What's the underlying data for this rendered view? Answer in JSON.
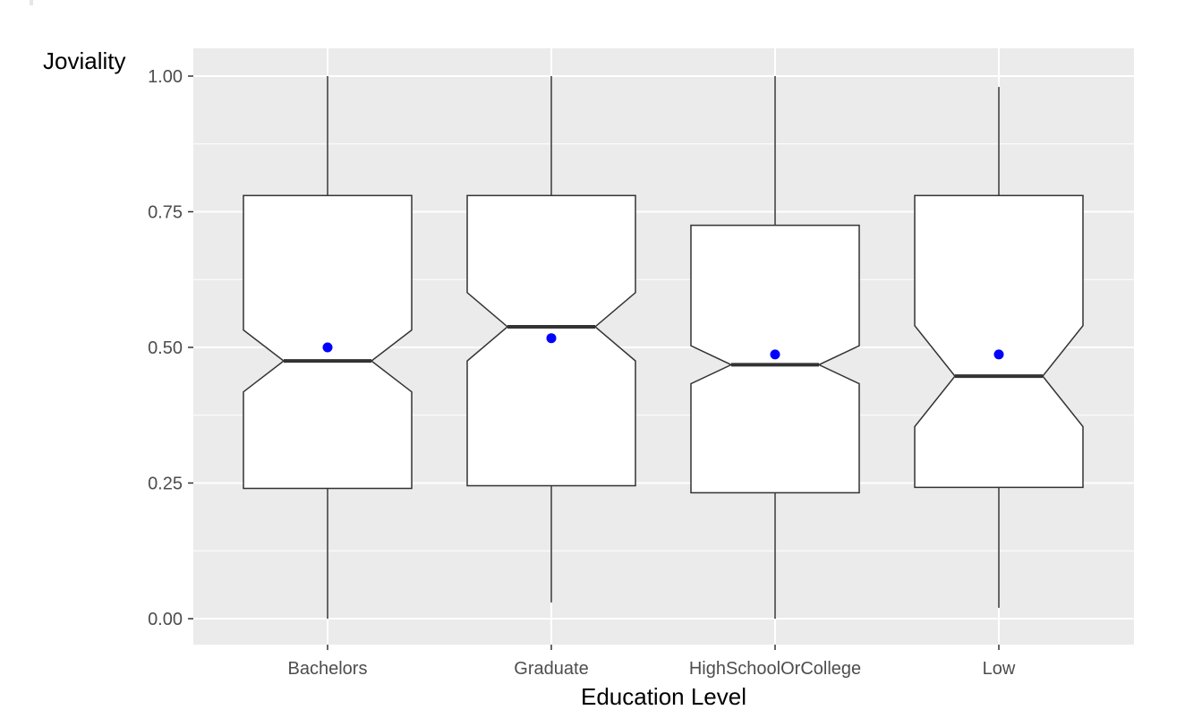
{
  "chart_data": {
    "type": "box",
    "title": "",
    "xlabel": "Education Level",
    "ylabel": "Joviality",
    "ylim": [
      -0.05,
      1.05
    ],
    "y_ticks": [
      0.0,
      0.25,
      0.5,
      0.75,
      1.0
    ],
    "y_tick_labels": [
      "0.00",
      "0.25",
      "0.50",
      "0.75",
      "1.00"
    ],
    "categories": [
      "Bachelors",
      "Graduate",
      "HighSchoolOrCollege",
      "Low"
    ],
    "notched": true,
    "grid": true,
    "boxes": [
      {
        "min": 0.0,
        "q1": 0.24,
        "median": 0.475,
        "q3": 0.78,
        "max": 1.0,
        "notch_low": 0.418,
        "notch_high": 0.532,
        "mean": 0.5
      },
      {
        "min": 0.03,
        "q1": 0.245,
        "median": 0.538,
        "q3": 0.78,
        "max": 1.0,
        "notch_low": 0.475,
        "notch_high": 0.601,
        "mean": 0.517
      },
      {
        "min": 0.0,
        "q1": 0.232,
        "median": 0.468,
        "q3": 0.725,
        "max": 1.0,
        "notch_low": 0.433,
        "notch_high": 0.503,
        "mean": 0.487
      },
      {
        "min": 0.02,
        "q1": 0.242,
        "median": 0.447,
        "q3": 0.78,
        "max": 0.98,
        "notch_low": 0.354,
        "notch_high": 0.54,
        "mean": 0.487
      }
    ],
    "colors": {
      "panel": "#ebebeb",
      "grid": "#ffffff",
      "box_fill": "#ffffff",
      "box_stroke": "#333333",
      "mean_point": "#0000ff"
    }
  }
}
